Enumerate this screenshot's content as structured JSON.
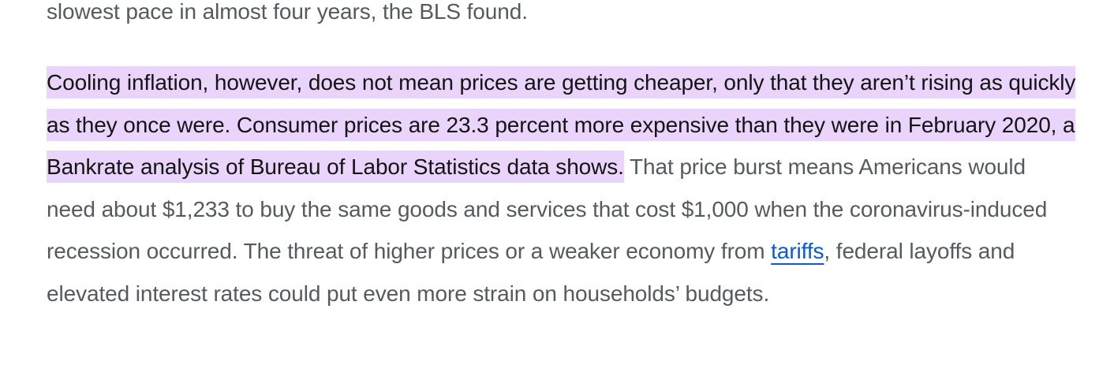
{
  "article": {
    "prev_paragraph_tail": "slowest pace in almost four years, the BLS found.",
    "paragraph": {
      "highlighted_text": "Cooling inflation, however, does not mean prices are getting cheaper, only that they aren’t rising as quickly as they once were. Consumer prices are 23.3 percent more expensive than they were in February 2020, a Bankrate analysis of Bureau of Labor Statistics data shows.",
      "text_before_link": " That price burst means Americans would need about $1,233 to buy the same goods and services that cost $1,000 when the coronavirus-induced recession occurred. The threat of higher prices or a weaker economy from ",
      "link_text": "tariffs",
      "text_after_link": ", federal layoffs and elevated interest rates could put even more strain on households’ budgets."
    },
    "colors": {
      "highlight": "#ead4fb",
      "body_text": "#555a60",
      "highlighted_text": "#141414",
      "link": "#0a58d6"
    }
  }
}
